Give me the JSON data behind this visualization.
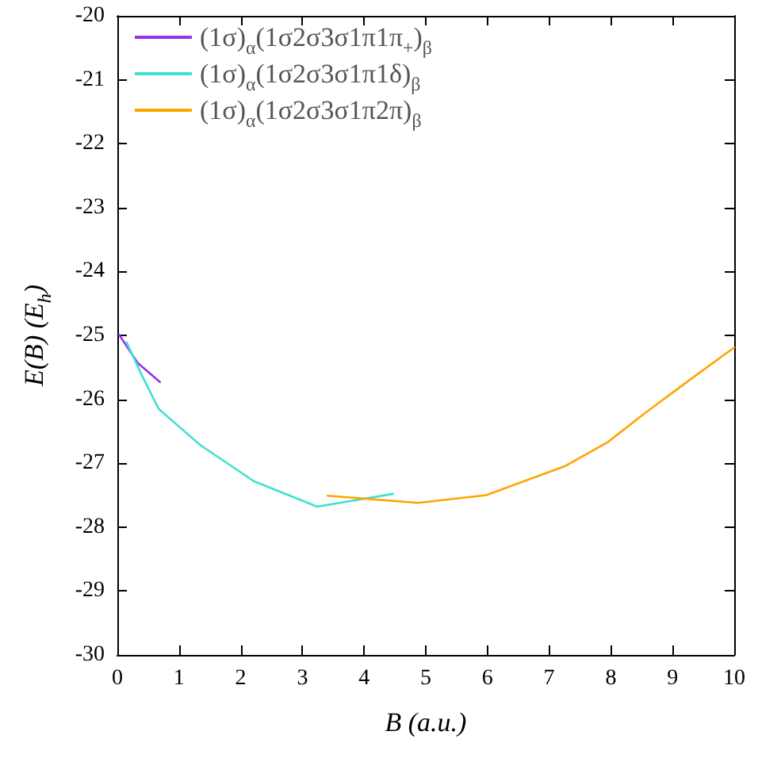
{
  "chart_data": {
    "type": "line",
    "xlabel": "B (a.u.)",
    "ylabel": "E(B) (E$_{h}$)",
    "xlim": [
      0,
      10
    ],
    "xticks": [
      0,
      1,
      2,
      3,
      4,
      5,
      6,
      7,
      8,
      9,
      10
    ],
    "ylim": [
      -30,
      -20
    ],
    "yticks": [
      -30,
      -29,
      -28,
      -27,
      -26,
      -25,
      -24,
      -23,
      -22,
      -21,
      -20
    ],
    "grid": false,
    "legend": "top left",
    "marker": "none",
    "line_style": "solid",
    "series": [
      {
        "name": "(1σ)$_{α}$(1σ2σ3σ1π1π$_{+}$)$_{β}$",
        "color": "#9b30e8",
        "x": [
          0.03,
          0.33,
          0.69
        ],
        "values": [
          -24.99,
          -25.43,
          -25.73
        ]
      },
      {
        "name": "(1σ)$_{α}$(1σ2σ3σ1π1δ)$_{β}$",
        "color": "#40e0d0",
        "x": [
          0.15,
          0.41,
          0.67,
          1.35,
          2.21,
          3.24,
          4.47
        ],
        "values": [
          -25.11,
          -25.65,
          -26.15,
          -26.72,
          -27.28,
          -27.68,
          -27.48
        ]
      },
      {
        "name": "(1σ)$_{α}$(1σ2σ3σ1π2π)$_{β}$",
        "color": "#ffa500",
        "x": [
          3.41,
          4.87,
          5.98,
          7.27,
          7.95,
          8.55,
          9.23,
          10
        ],
        "values": [
          -27.51,
          -27.62,
          -27.5,
          -27.04,
          -26.67,
          -26.22,
          -25.73,
          -25.19
        ]
      }
    ]
  }
}
